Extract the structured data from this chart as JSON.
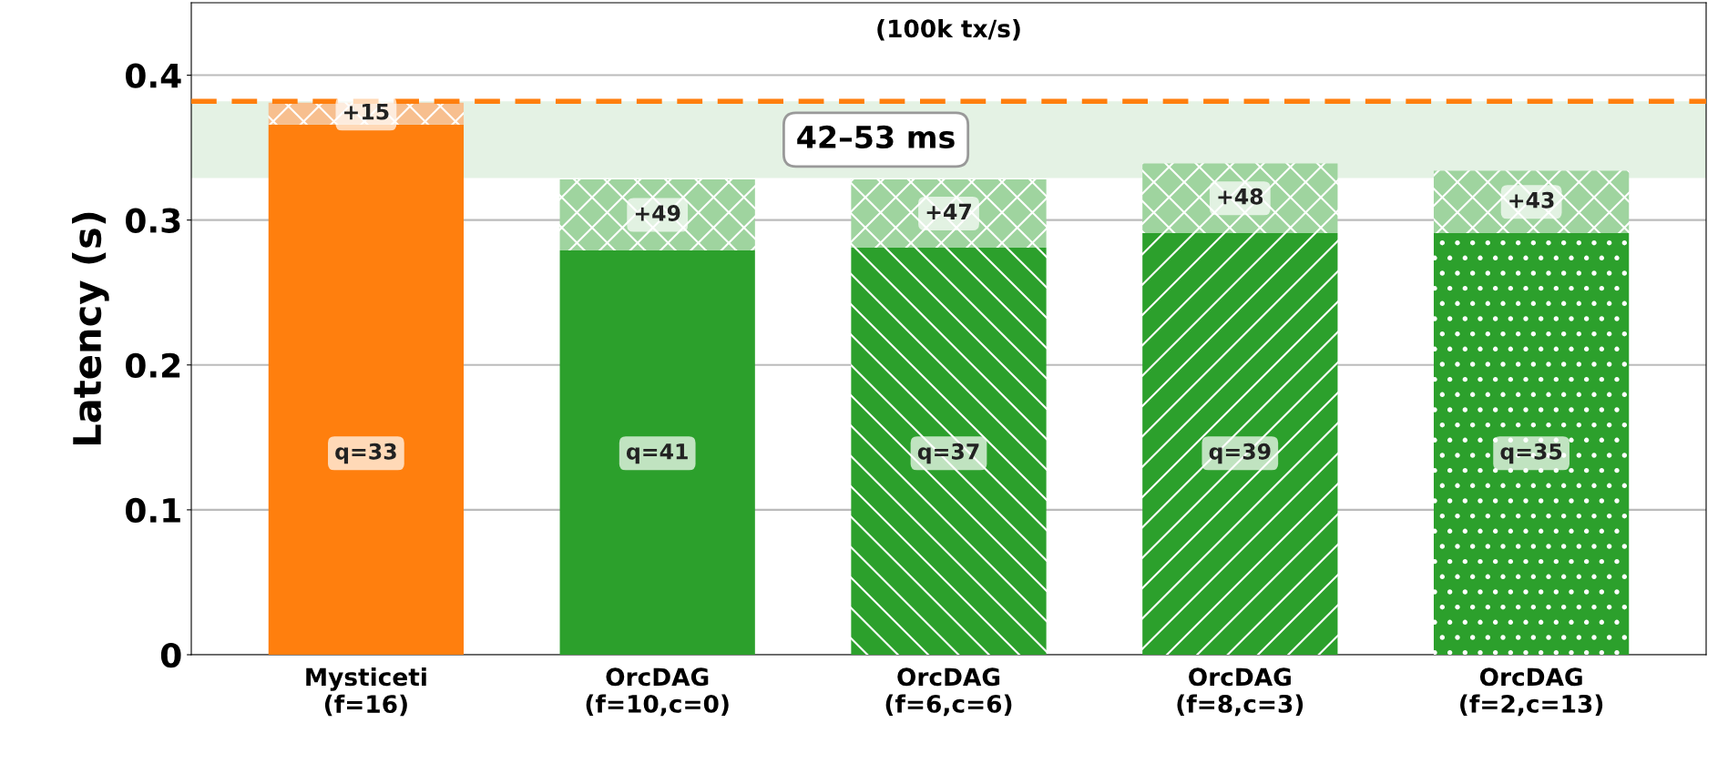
{
  "chart_data": {
    "type": "bar",
    "title": "(100k tx/s)",
    "ylabel": "Latency (s)",
    "stacked": true,
    "categories": [
      "Mysticeti\n(f=16)",
      "OrcDAG\n(f=10,c=0)",
      "OrcDAG\n(f=6,c=6)",
      "OrcDAG\n(f=8,c=3)",
      "OrcDAG\n(f=2,c=13)"
    ],
    "series": [
      {
        "colors": [
          "#ff7f0e",
          "#2ca02c",
          "#2ca02c",
          "#2ca02c",
          "#2ca02c"
        ],
        "values": [
          0.366,
          0.279,
          0.281,
          0.291,
          0.291
        ]
      },
      {
        "colors": [
          "#f7bf8f",
          "#9fd49f",
          "#9fd49f",
          "#9fd49f",
          "#9fd49f"
        ],
        "values": [
          0.015,
          0.049,
          0.047,
          0.048,
          0.043
        ]
      }
    ],
    "annotations": [
      "q=33",
      "q=41",
      "q=37",
      "q=39",
      "q=35",
      "+15",
      "+49",
      "+47",
      "+48",
      "+43"
    ],
    "ref_lines": [
      {
        "axis": "y",
        "value": 0.382,
        "color": "#ff7f0e",
        "line_style": "dashed"
      }
    ],
    "bands": [
      {
        "axis": "y",
        "from": 0.329,
        "to": 0.382,
        "label": "42–53 ms",
        "color": "#e4f2e4"
      }
    ],
    "ylim": [
      0,
      0.45
    ],
    "yticks": [
      0,
      0.1,
      0.2,
      0.3,
      0.4
    ],
    "grid": "y"
  }
}
